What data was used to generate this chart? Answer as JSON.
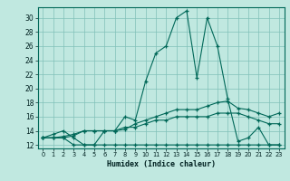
{
  "xlabel": "Humidex (Indice chaleur)",
  "background_color": "#c0e8e0",
  "grid_color": "#80c0b8",
  "line_color": "#006858",
  "xlim": [
    -0.5,
    23.5
  ],
  "ylim": [
    11.5,
    31.5
  ],
  "yticks": [
    12,
    14,
    16,
    18,
    20,
    22,
    24,
    26,
    28,
    30
  ],
  "xticks": [
    0,
    1,
    2,
    3,
    4,
    5,
    6,
    7,
    8,
    9,
    10,
    11,
    12,
    13,
    14,
    15,
    16,
    17,
    18,
    19,
    20,
    21,
    22,
    23
  ],
  "series": [
    [
      13,
      13.5,
      14,
      13,
      12,
      12,
      14,
      14,
      16,
      15.5,
      21,
      25,
      26,
      30,
      31,
      21.5,
      30,
      26,
      18.5,
      12.5,
      13,
      14.5,
      12,
      12
    ],
    [
      13,
      13,
      13.2,
      13.5,
      14,
      14,
      14,
      14,
      14.2,
      15,
      15.5,
      16,
      16.5,
      17,
      17,
      17,
      17.5,
      18,
      18.2,
      17.2,
      17,
      16.5,
      16,
      16.5
    ],
    [
      13,
      13,
      13,
      13.3,
      14,
      14,
      14,
      14,
      14.5,
      14.5,
      15,
      15.5,
      15.5,
      16,
      16,
      16,
      16,
      16.5,
      16.5,
      16.5,
      16,
      15.5,
      15,
      15
    ],
    [
      13,
      13,
      13,
      12,
      12,
      12,
      12,
      12,
      12,
      12,
      12,
      12,
      12,
      12,
      12,
      12,
      12,
      12,
      12,
      12,
      12,
      12,
      12,
      12
    ]
  ]
}
